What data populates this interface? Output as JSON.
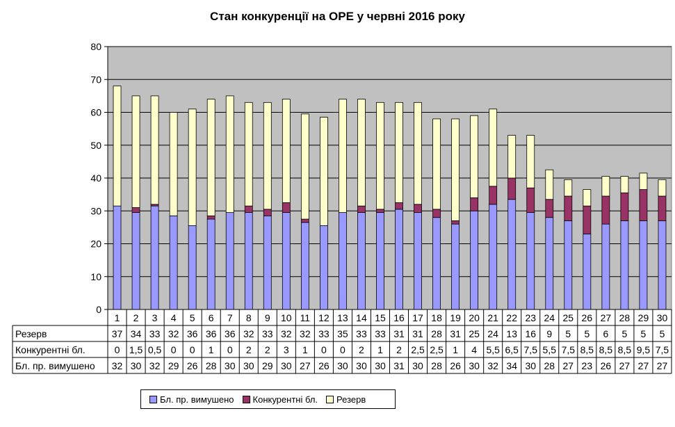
{
  "chart_data": {
    "type": "bar",
    "stacked": true,
    "title": "Стан конкуренції на ОРЕ  у червні 2016 року",
    "xlabel": "",
    "ylabel": "",
    "ylim": [
      0,
      80
    ],
    "yticks": [
      "0",
      "10",
      "20",
      "30",
      "40",
      "50",
      "60",
      "70",
      "80"
    ],
    "grid": true,
    "legend_position": "bottom",
    "plot_background": "#C0C0C0",
    "categories": [
      "1",
      "2",
      "3",
      "4",
      "5",
      "6",
      "7",
      "8",
      "9",
      "10",
      "11",
      "12",
      "13",
      "14",
      "15",
      "16",
      "17",
      "18",
      "19",
      "20",
      "21",
      "22",
      "23",
      "24",
      "25",
      "26",
      "27",
      "28",
      "29",
      "30"
    ],
    "series": [
      {
        "name": "Бл. пр. вимушено",
        "color": "#9999FF",
        "values": [
          31.5,
          29.5,
          31.5,
          28.5,
          25.5,
          27.5,
          29.5,
          29.5,
          28.5,
          29.5,
          26.5,
          25.5,
          29.5,
          29.5,
          29.5,
          30.5,
          29.5,
          28,
          26,
          30,
          32,
          33.5,
          29.5,
          28,
          27,
          23,
          26,
          27,
          27,
          27
        ],
        "labels": [
          "32",
          "30",
          "32",
          "29",
          "26",
          "28",
          "30",
          "30",
          "29",
          "30",
          "27",
          "26",
          "30",
          "30",
          "30",
          "31",
          "30",
          "28",
          "26",
          "30",
          "32",
          "34",
          "30",
          "28",
          "27",
          "23",
          "26",
          "27",
          "27",
          "27"
        ]
      },
      {
        "name": "Конкурентні бл.",
        "color": "#993366",
        "values": [
          0,
          1.5,
          0.5,
          0,
          0,
          1,
          0,
          2,
          2,
          3,
          1,
          0,
          0,
          2,
          1,
          2,
          2.5,
          2.5,
          1,
          4,
          5.5,
          6.5,
          7.5,
          5.5,
          7.5,
          8.5,
          8.5,
          8.5,
          9.5,
          7.5
        ],
        "labels": [
          "0",
          "1,5",
          "0,5",
          "0",
          "0",
          "1",
          "0",
          "2",
          "2",
          "3",
          "1",
          "0",
          "0",
          "2",
          "1",
          "2",
          "2,5",
          "2,5",
          "1",
          "4",
          "5,5",
          "6,5",
          "7,5",
          "5,5",
          "7,5",
          "8,5",
          "8,5",
          "8,5",
          "9,5",
          "7,5"
        ]
      },
      {
        "name": "Резерв",
        "color": "#FFFFCC",
        "values": [
          36.5,
          34,
          33,
          31.5,
          35.5,
          35.5,
          35.5,
          31.5,
          32.5,
          31.5,
          32,
          33,
          34.5,
          32.5,
          32.5,
          30.5,
          31,
          27.5,
          31,
          25,
          23.5,
          13,
          16,
          9,
          5,
          5,
          6,
          5,
          5,
          5
        ],
        "labels": [
          "37",
          "34",
          "33",
          "32",
          "36",
          "36",
          "36",
          "32",
          "33",
          "32",
          "32",
          "33",
          "35",
          "33",
          "33",
          "31",
          "31",
          "28",
          "31",
          "25",
          "24",
          "13",
          "16",
          "9",
          "5",
          "5",
          "6",
          "5",
          "5",
          "5"
        ]
      }
    ],
    "table_row_order": [
      "Резерв",
      "Конкурентні бл.",
      "Бл. пр. вимушено"
    ]
  }
}
